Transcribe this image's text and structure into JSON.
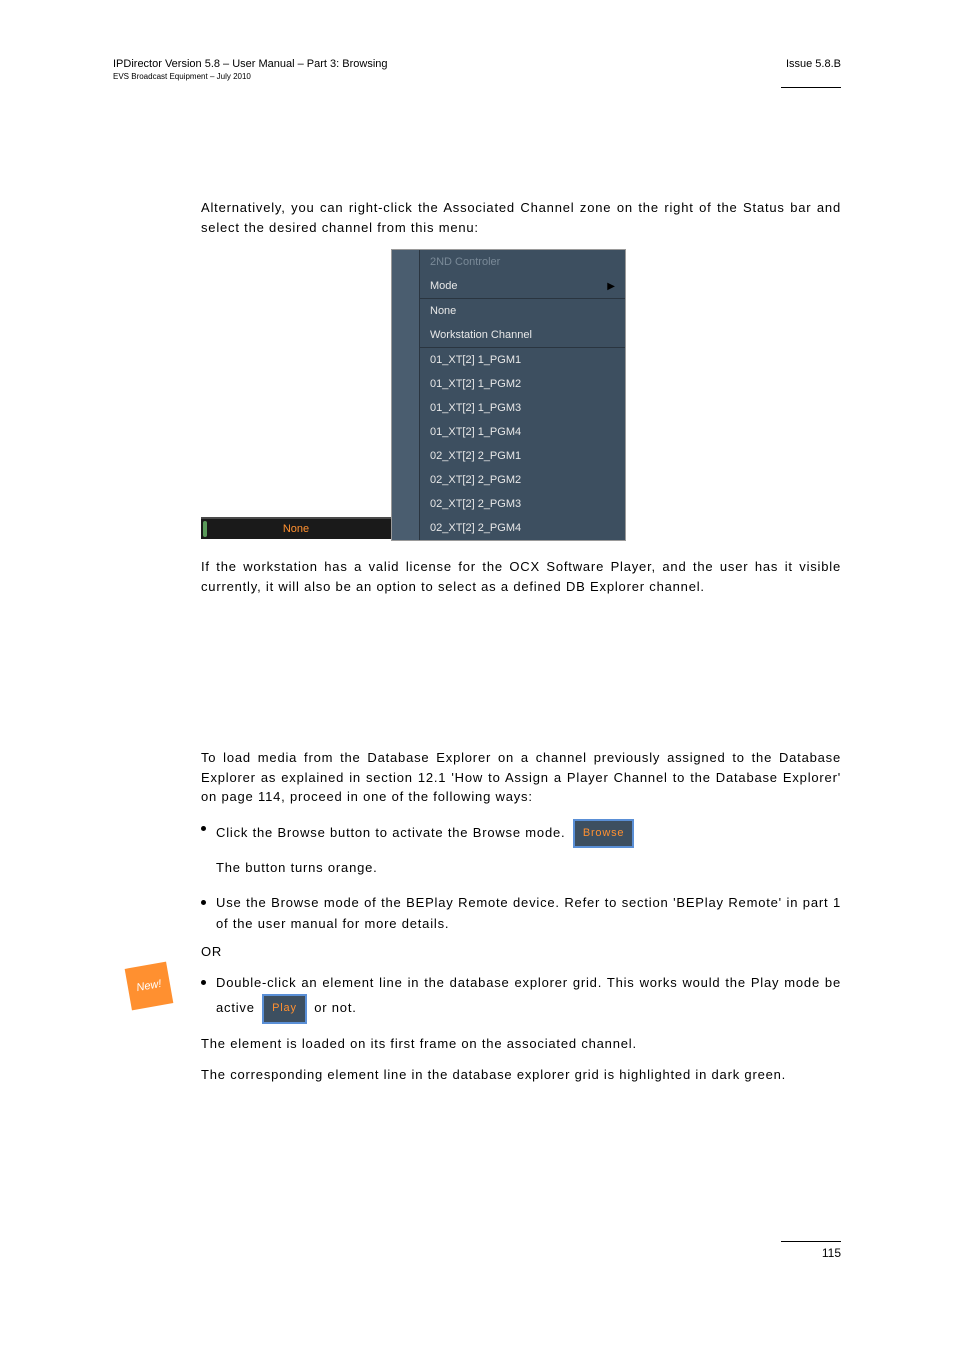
{
  "header": {
    "title_left": "IPDirector Version 5.8 – User Manual – Part 3: Browsing",
    "subtitle_left": "EVS Broadcast Equipment – July 2010",
    "title_right": "Issue 5.8.B"
  },
  "para1": "Alternatively, you can right-click the Associated Channel zone on the right of the Status bar and select the desired channel from this menu:",
  "statusbar": {
    "label": "None",
    "label_color": "#ff9030",
    "bg_color": "#1a1a1a"
  },
  "menu": {
    "bg_color": "#3d4f60",
    "gutter_color": "#4a5d6f",
    "text_color": "#e8e8e8",
    "dim_color": "#7a8a98",
    "groups": [
      [
        {
          "label": "2ND Controler",
          "dim": true,
          "arrow": false
        },
        {
          "label": "Mode",
          "dim": false,
          "arrow": true
        }
      ],
      [
        {
          "label": "None",
          "dim": false,
          "arrow": false
        },
        {
          "label": "Workstation Channel",
          "dim": false,
          "arrow": false
        }
      ],
      [
        {
          "label": "01_XT[2] 1_PGM1",
          "dim": false,
          "arrow": false
        },
        {
          "label": "01_XT[2] 1_PGM2",
          "dim": false,
          "arrow": false
        },
        {
          "label": "01_XT[2] 1_PGM3",
          "dim": false,
          "arrow": false
        },
        {
          "label": "01_XT[2] 1_PGM4",
          "dim": false,
          "arrow": false
        },
        {
          "label": "02_XT[2] 2_PGM1",
          "dim": false,
          "arrow": false
        },
        {
          "label": "02_XT[2] 2_PGM2",
          "dim": false,
          "arrow": false
        },
        {
          "label": "02_XT[2] 2_PGM3",
          "dim": false,
          "arrow": false
        },
        {
          "label": "02_XT[2] 2_PGM4",
          "dim": false,
          "arrow": false
        }
      ]
    ]
  },
  "para2": "If the workstation has a valid license for the OCX Software Player, and the user has it visible currently, it will also be an option to select as a defined DB Explorer channel.",
  "para3": "To load media from the Database Explorer on a channel previously assigned to the Database Explorer as explained in section 12.1 'How to Assign a Player Channel to the Database Explorer' on page 114, proceed in one of the following ways:",
  "bullets": {
    "b1_pre": "Click the Browse button to activate the Browse mode. ",
    "b1_btn": "Browse",
    "b1_sub": "The button turns orange.",
    "b2": "Use the Browse mode of the BEPlay Remote device. Refer to section 'BEPlay Remote' in part 1 of the user manual for more details.",
    "or": "OR",
    "b3_pre": "Double-click an element line in the database explorer grid. This works would the Play mode be active ",
    "b3_btn": "Play",
    "b3_post": " or not."
  },
  "para4": "The element is loaded on its first frame on the associated channel.",
  "para5": "The corresponding element line in the database explorer grid is highlighted in dark green.",
  "new_badge": "New!",
  "page_number": "115",
  "buttons": {
    "border_color": "#5a8fd6",
    "bg_color": "#3d4f60",
    "text_color": "#ff9030"
  }
}
